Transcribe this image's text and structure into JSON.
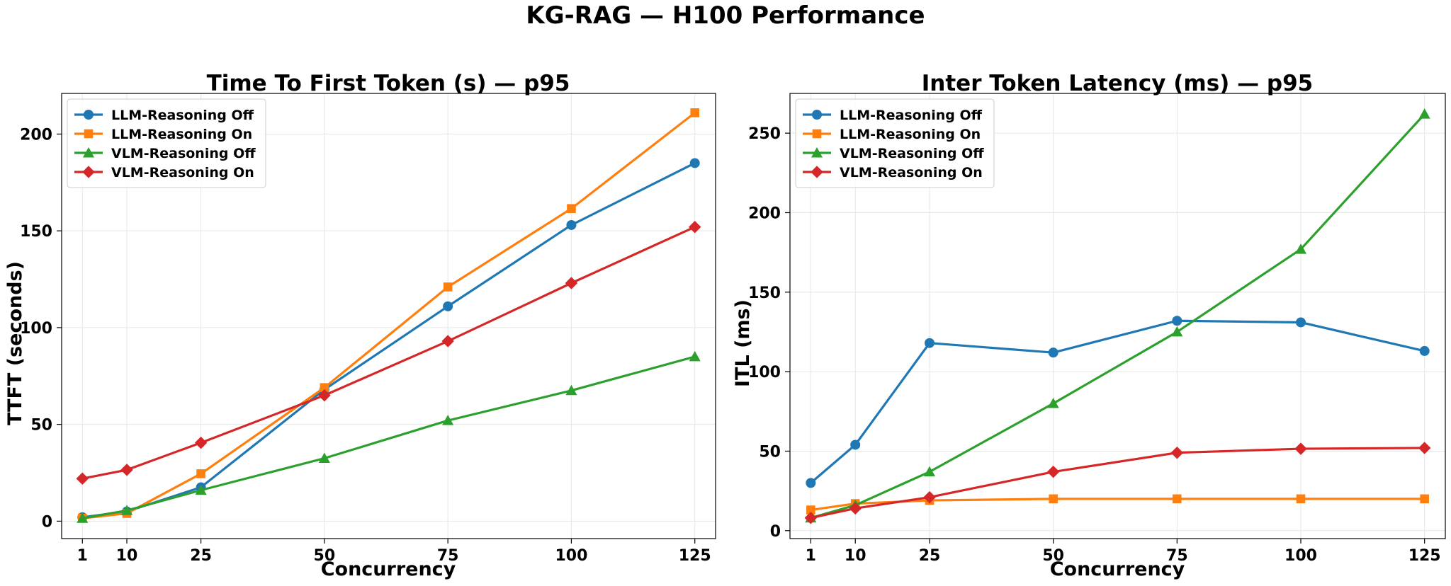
{
  "figure": {
    "title": "KG-RAG — H100 Performance"
  },
  "chart_data": [
    {
      "type": "line",
      "title": "Time To First Token (s) — p95",
      "xlabel": "Concurrency",
      "ylabel": "TTFT (seconds)",
      "x": [
        1,
        10,
        25,
        50,
        75,
        100,
        125
      ],
      "x_ticks": [
        1,
        10,
        25,
        50,
        75,
        100,
        125
      ],
      "y_ticks": [
        0,
        50,
        100,
        150,
        200
      ],
      "xlim": [
        -3.2,
        129.2
      ],
      "ylim": [
        -9,
        221
      ],
      "grid": true,
      "legend": "top-left",
      "series": [
        {
          "name": "LLM-Reasoning Off",
          "color": "#1f77b4",
          "marker": "circle",
          "values": [
            2,
            5,
            17.5,
            68,
            111,
            153,
            185
          ]
        },
        {
          "name": "LLM-Reasoning On",
          "color": "#ff7f0e",
          "marker": "square",
          "values": [
            1.5,
            4,
            24.5,
            69,
            121,
            161.5,
            211
          ]
        },
        {
          "name": "VLM-Reasoning Off",
          "color": "#2ca02c",
          "marker": "triangle",
          "values": [
            1.5,
            5.5,
            16,
            32.5,
            52,
            67.5,
            85
          ]
        },
        {
          "name": "VLM-Reasoning On",
          "color": "#d62728",
          "marker": "diamond",
          "values": [
            22,
            26.5,
            40.5,
            65,
            93,
            123,
            152
          ]
        }
      ]
    },
    {
      "type": "line",
      "title": "Inter Token Latency (ms) — p95",
      "xlabel": "Concurrency",
      "ylabel": "ITL (ms)",
      "x": [
        1,
        10,
        25,
        50,
        75,
        100,
        125
      ],
      "x_ticks": [
        1,
        10,
        25,
        50,
        75,
        100,
        125
      ],
      "y_ticks": [
        0,
        50,
        100,
        150,
        200,
        250
      ],
      "xlim": [
        -3.2,
        129.2
      ],
      "ylim": [
        -5,
        275
      ],
      "grid": true,
      "legend": "top-left",
      "series": [
        {
          "name": "LLM-Reasoning Off",
          "color": "#1f77b4",
          "marker": "circle",
          "values": [
            30,
            54,
            118,
            112,
            132,
            131,
            113
          ]
        },
        {
          "name": "LLM-Reasoning On",
          "color": "#ff7f0e",
          "marker": "square",
          "values": [
            13,
            17,
            19,
            20,
            20,
            20,
            20
          ]
        },
        {
          "name": "VLM-Reasoning Off",
          "color": "#2ca02c",
          "marker": "triangle",
          "values": [
            8,
            16,
            37,
            80,
            125,
            177,
            262
          ]
        },
        {
          "name": "VLM-Reasoning On",
          "color": "#d62728",
          "marker": "diamond",
          "values": [
            8,
            14,
            21,
            37,
            49,
            51.5,
            52
          ]
        }
      ]
    }
  ]
}
